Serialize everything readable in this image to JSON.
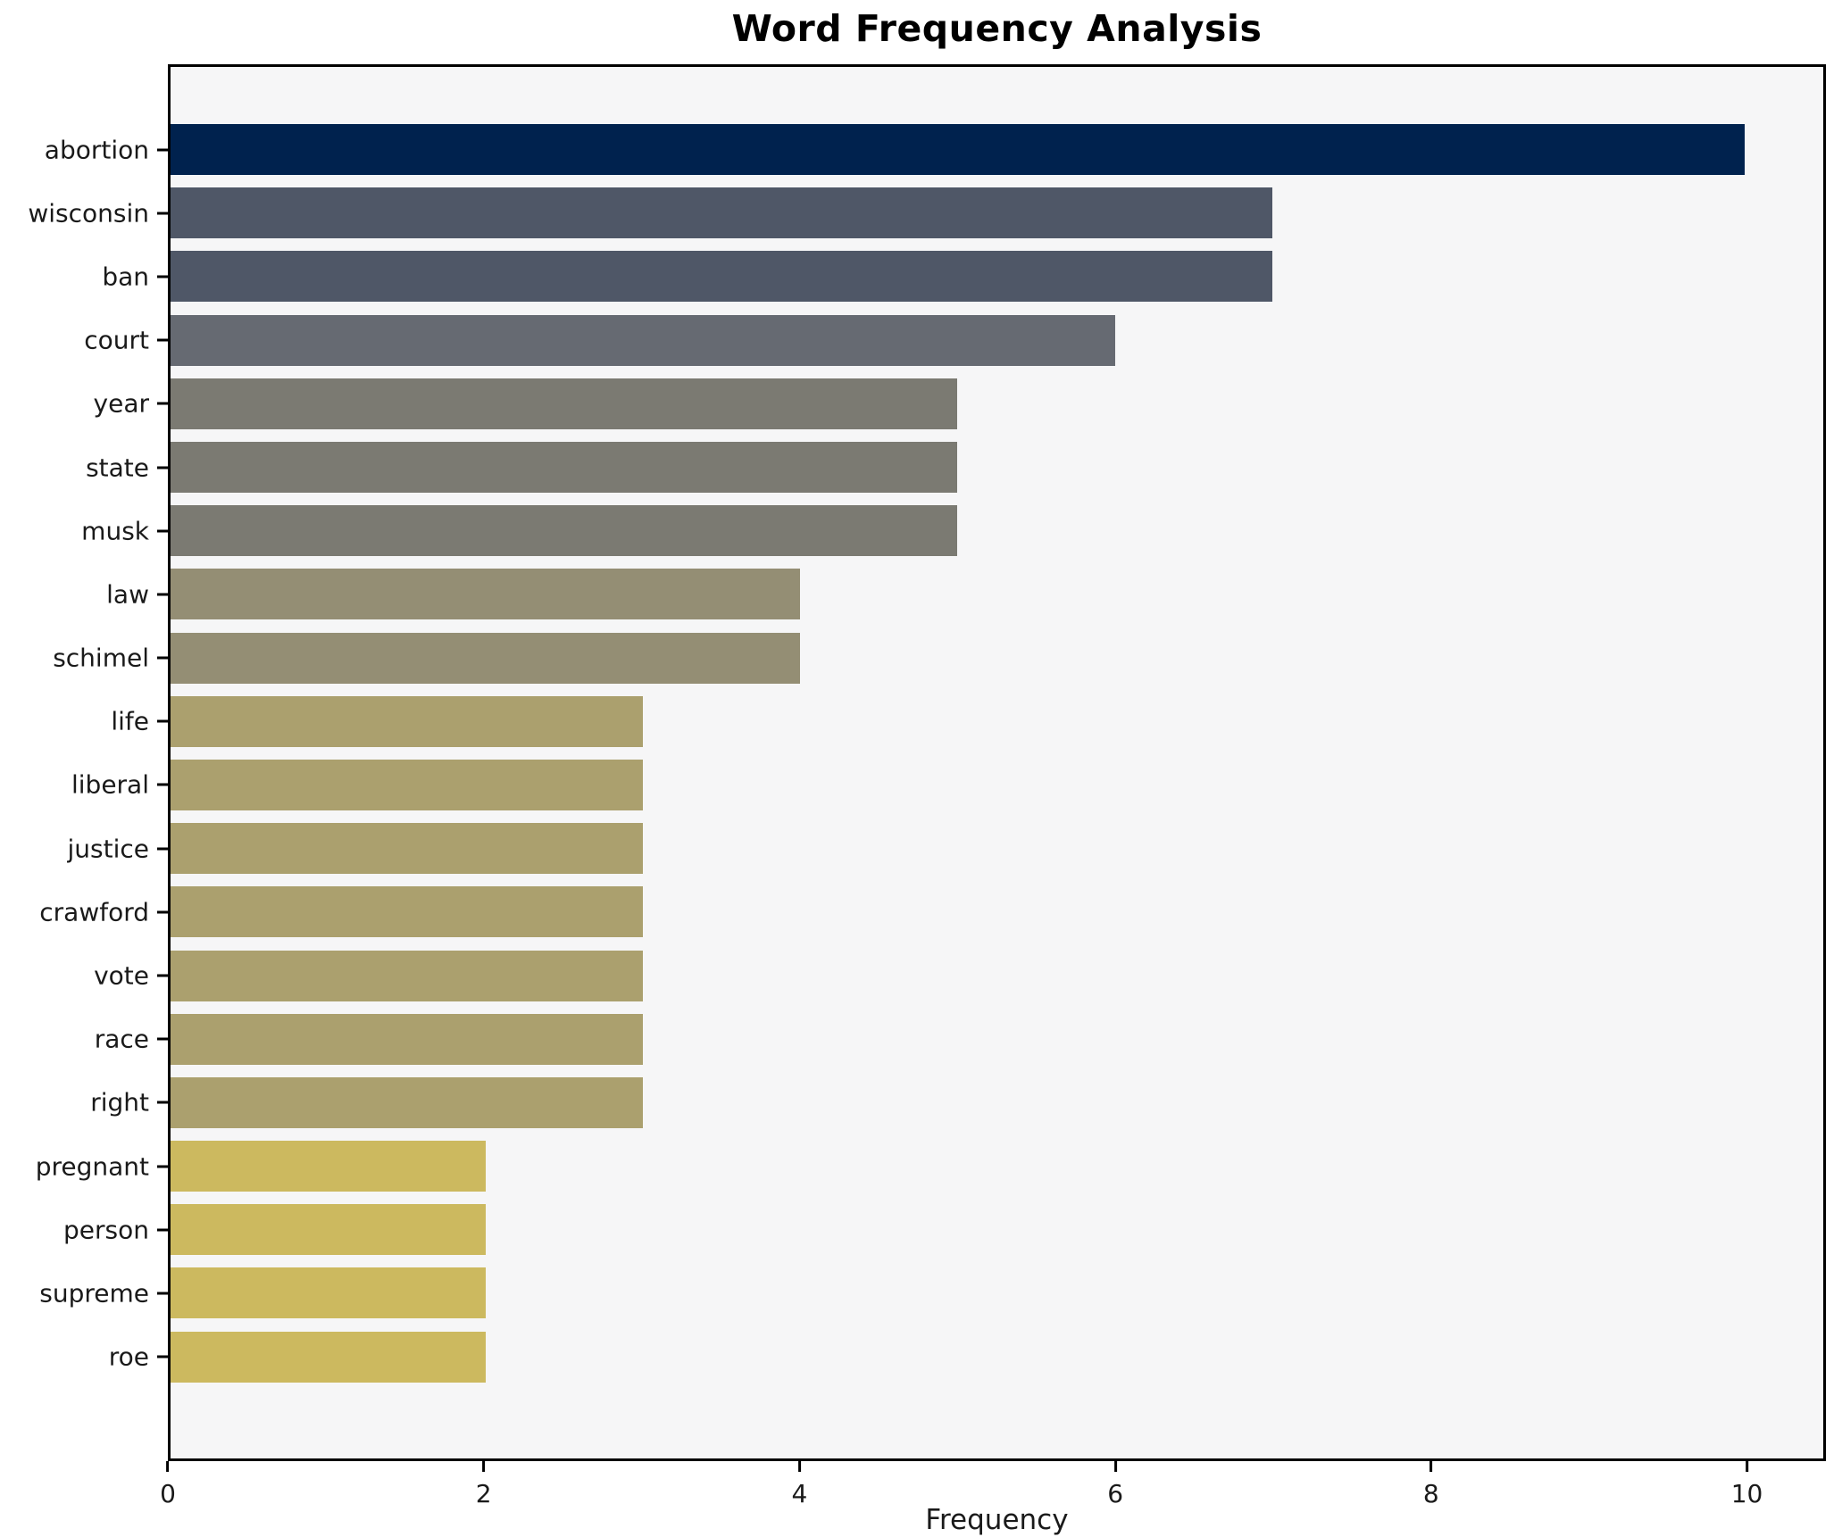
{
  "title": "Word Frequency Analysis",
  "x_axis_label": "Frequency",
  "colors": {
    "plot_background": "#f6f6f7",
    "figure_background": "#ffffff",
    "axis_spine": "#000000",
    "text": "#1a1a1a"
  },
  "chart_data": {
    "type": "bar",
    "orientation": "horizontal",
    "title": "Word Frequency Analysis",
    "xlabel": "Frequency",
    "ylabel": "",
    "categories": [
      "abortion",
      "wisconsin",
      "ban",
      "court",
      "year",
      "state",
      "musk",
      "law",
      "schimel",
      "life",
      "liberal",
      "justice",
      "crawford",
      "vote",
      "race",
      "right",
      "pregnant",
      "person",
      "supreme",
      "roe"
    ],
    "values": [
      10,
      7,
      7,
      6,
      5,
      5,
      5,
      4,
      4,
      3,
      3,
      3,
      3,
      3,
      3,
      3,
      2,
      2,
      2,
      2
    ],
    "bar_colors": [
      "#00224e",
      "#4f5767",
      "#4f5767",
      "#666a72",
      "#7b7a72",
      "#7b7a72",
      "#7b7a72",
      "#948e74",
      "#948e74",
      "#aba06e",
      "#aba06e",
      "#aba06e",
      "#aba06e",
      "#aba06e",
      "#aba06e",
      "#aba06e",
      "#ccb95f",
      "#ccb95f",
      "#ccb95f",
      "#ccb95f"
    ],
    "colormap": "cividis",
    "xlim": [
      0,
      10.5
    ],
    "xticks": [
      0,
      2,
      4,
      6,
      8,
      10
    ],
    "grid": false,
    "legend": null
  }
}
